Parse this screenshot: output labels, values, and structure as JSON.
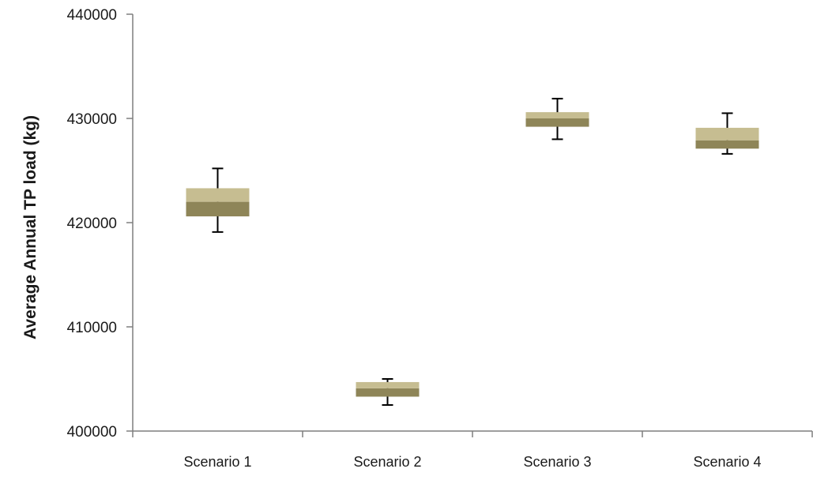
{
  "chart_data": {
    "type": "box",
    "title": "",
    "xlabel": "",
    "ylabel": "Average Annual TP load (kg)",
    "categories": [
      "Scenario 1",
      "Scenario 2",
      "Scenario 3",
      "Scenario 4"
    ],
    "ylim": [
      400000,
      440000
    ],
    "yticks": [
      400000,
      410000,
      420000,
      430000,
      440000
    ],
    "ytick_labels": [
      "400000",
      "410000",
      "420000",
      "430000",
      "440000"
    ],
    "grid": false,
    "legend": "none",
    "series": [
      {
        "stats": [
          {
            "min": 419100,
            "q1": 420600,
            "median": 422000,
            "q3": 423300,
            "max": 425200
          },
          {
            "min": 402500,
            "q1": 403300,
            "median": 404100,
            "q3": 404700,
            "max": 405000
          },
          {
            "min": 428000,
            "q1": 429200,
            "median": 430000,
            "q3": 430600,
            "max": 431900
          },
          {
            "min": 426600,
            "q1": 427100,
            "median": 427900,
            "q3": 429100,
            "max": 430500
          }
        ]
      }
    ],
    "colors": {
      "box_lower": "#8e8558",
      "box_upper": "#c6bd91",
      "whisker": "#000000",
      "axis": "#7f7f7f"
    }
  }
}
